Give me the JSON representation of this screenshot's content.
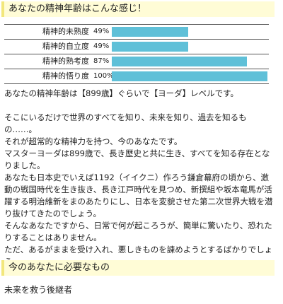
{
  "header": {
    "title": "あなたの精神年齢はこんな感じ！"
  },
  "stats": [
    {
      "label": "精神的未熟度",
      "percent_text": "49%",
      "value": 49
    },
    {
      "label": "精神的自立度",
      "percent_text": "49%",
      "value": 49
    },
    {
      "label": "精神的熟考度",
      "percent_text": "87%",
      "value": 87
    },
    {
      "label": "精神的悟り度",
      "percent_text": "100%",
      "value": 100
    }
  ],
  "result": {
    "summary": "あなたの精神年齢は【899歳】ぐらいで【ヨーダ】レベルです。",
    "paragraphs": [
      "そこにいるだけで世界のすべてを知り、未来を知り、過去を知るもの……。",
      "それが超常的な精神力を持つ、今のあなたです。",
      "マスターヨーダは899歳で、長き歴史と共に生き、すべてを知る存在となりました。",
      "あなたも日本史でいえば1192（イイクニ）作ろう鎌倉幕府の頃から、激動の戦国時代を生き抜き、長き江戸時代を見つめ、新撰組や坂本竜馬が活躍する明治維新をまのあたりにし、日本を変貌させた第二次世界大戦を潜り抜けてきたのでしょう。",
      "そんなあなたですから、日常で何が起ころうが、簡単に驚いたり、恐れたりすることはありません。",
      "ただ、あるがままを受け入れ、悪しきものを諌めようとするばかりでしょう。"
    ]
  },
  "needs": {
    "title": "今のあなたに必要なもの",
    "item": "未来を救う後継者"
  },
  "colors": {
    "bar": "#5fc0d8",
    "header_bg": "#fffcd6",
    "header_accent": "#f2e77b"
  }
}
